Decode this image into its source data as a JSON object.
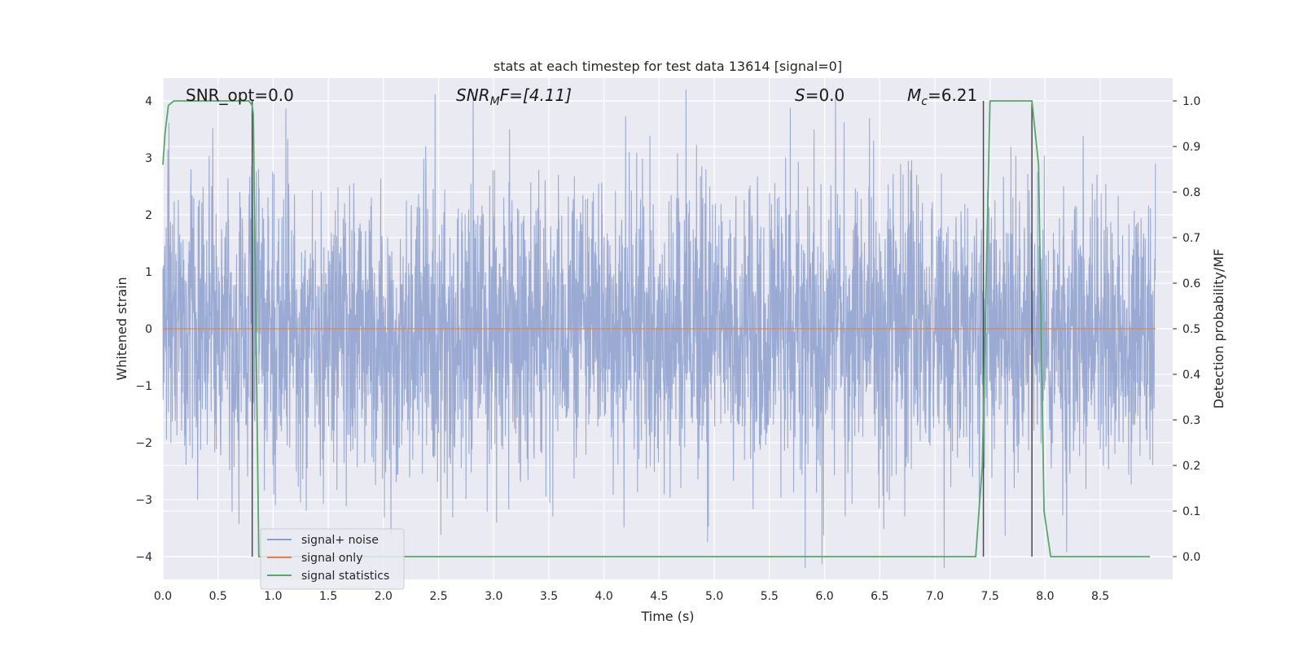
{
  "chart_data": {
    "type": "line",
    "title": "stats at each timestep for test data 13614 [signal=0]",
    "xlabel": "Time (s)",
    "ylabel": "Whitened strain",
    "ylabel_right": "Detection probability/MF",
    "xlim": [
      0.0,
      9.0
    ],
    "ylim": [
      -4.4,
      4.4
    ],
    "ylim_right": [
      -0.05,
      1.05
    ],
    "xticks": [
      0.0,
      0.5,
      1.0,
      1.5,
      2.0,
      2.5,
      3.0,
      3.5,
      4.0,
      4.5,
      5.0,
      5.5,
      6.0,
      6.5,
      7.0,
      7.5,
      8.0,
      8.5
    ],
    "xtick_labels": [
      "0.0",
      "0.5",
      "1.0",
      "1.5",
      "2.0",
      "2.5",
      "3.0",
      "3.5",
      "4.0",
      "4.5",
      "5.0",
      "5.5",
      "6.0",
      "6.5",
      "7.0",
      "7.5",
      "8.0",
      "8.5"
    ],
    "yticks": [
      -4,
      -3,
      -2,
      -1,
      0,
      1,
      2,
      3,
      4
    ],
    "ytick_labels": [
      "−4",
      "−3",
      "−2",
      "−1",
      "0",
      "1",
      "2",
      "3",
      "4"
    ],
    "yticks_right": [
      0.0,
      0.1,
      0.2,
      0.3,
      0.4,
      0.5,
      0.6,
      0.7,
      0.8,
      0.9,
      1.0
    ],
    "ytick_labels_right": [
      "0.0",
      "0.1",
      "0.2",
      "0.3",
      "0.4",
      "0.5",
      "0.6",
      "0.7",
      "0.8",
      "0.9",
      "1.0"
    ],
    "grid": true,
    "legend_position": "lower-left",
    "annotations": {
      "snr_opt": "SNR_opt=0.0",
      "snr_mf_name": "SNR",
      "snr_mf_sub": "M",
      "snr_mf_suffix": "F=[4.11]",
      "s_name": "S",
      "s_value": "=0.0",
      "mc_name": "M",
      "mc_sub": "c",
      "mc_value": "=6.21"
    },
    "series": [
      {
        "name": "signal+ noise",
        "color": "#8c9fcc",
        "kind": "strain noise, whitened, approx. amplitude ±4",
        "seed": 13614,
        "t_start": 0.0,
        "t_end": 9.0
      },
      {
        "name": "signal only",
        "color": "#dd8452",
        "x": [
          0.0,
          9.0
        ],
        "y": [
          0.0,
          0.0
        ]
      },
      {
        "name": "signal statistics",
        "color": "#55a868",
        "axis": "right",
        "x": [
          0.0,
          0.02,
          0.05,
          0.1,
          0.2,
          0.5,
          0.78,
          0.81,
          0.82,
          0.87,
          0.95,
          1.5,
          7.0,
          7.37,
          7.43,
          7.5,
          7.6,
          7.75,
          7.88,
          7.94,
          7.99,
          8.05,
          8.5,
          8.95
        ],
        "y": [
          0.86,
          0.93,
          0.99,
          1.0,
          1.0,
          1.0,
          1.0,
          0.99,
          0.97,
          0.0,
          0.0,
          0.0,
          0.0,
          0.0,
          0.2,
          1.0,
          1.0,
          1.0,
          1.0,
          0.86,
          0.1,
          0.0,
          0.0,
          0.0
        ]
      }
    ],
    "vertical_lines": [
      0.81,
      7.44,
      7.88
    ]
  }
}
